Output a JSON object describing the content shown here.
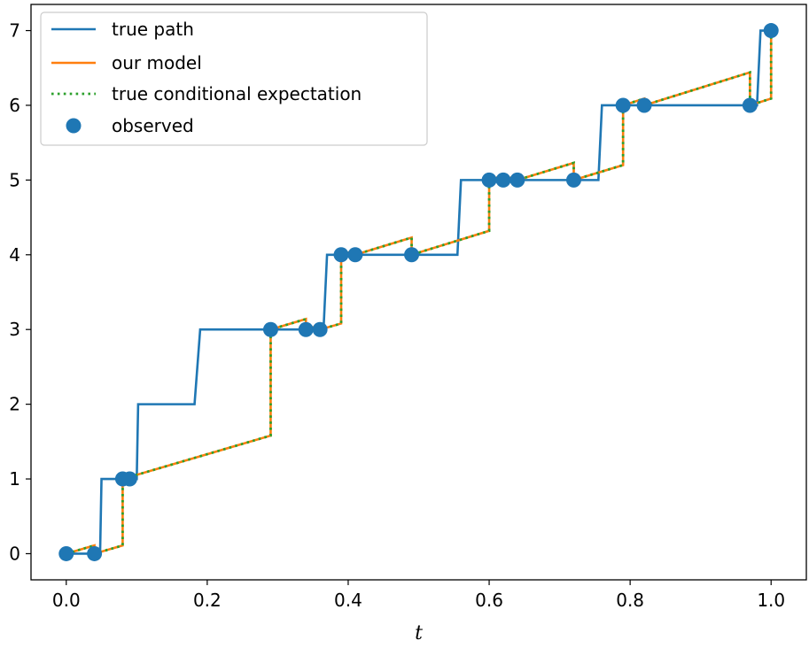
{
  "chart_data": {
    "type": "line",
    "title": "",
    "xlabel": "t",
    "ylabel": "",
    "xlim": [
      -0.05,
      1.05
    ],
    "ylim": [
      -0.35,
      7.35
    ],
    "x_ticks": [
      0.0,
      0.2,
      0.4,
      0.6,
      0.8,
      1.0
    ],
    "x_tick_labels": [
      "0.0",
      "0.2",
      "0.4",
      "0.6",
      "0.8",
      "1.0"
    ],
    "y_ticks": [
      0,
      1,
      2,
      3,
      4,
      5,
      6,
      7
    ],
    "y_tick_labels": [
      "0",
      "1",
      "2",
      "3",
      "4",
      "5",
      "6",
      "7"
    ],
    "grid": false,
    "legend_position": "top-left",
    "series": [
      {
        "name": "true path",
        "color": "#1f77b4",
        "style": "solid",
        "x": [
          0.0,
          0.048,
          0.05,
          0.1,
          0.102,
          0.182,
          0.19,
          0.29,
          0.3,
          0.365,
          0.37,
          0.555,
          0.56,
          0.755,
          0.76,
          0.98,
          0.985,
          1.0
        ],
        "y": [
          0,
          0,
          1,
          1,
          2,
          2,
          3,
          3,
          3,
          3,
          4,
          4,
          5,
          5,
          6,
          6,
          7,
          7
        ]
      },
      {
        "name": "our model",
        "color": "#ff7f0e",
        "style": "solid",
        "x": [
          0.0,
          0.04,
          0.04,
          0.08,
          0.08,
          0.29,
          0.29,
          0.34,
          0.34,
          0.36,
          0.36,
          0.39,
          0.39,
          0.41,
          0.41,
          0.49,
          0.49,
          0.6,
          0.6,
          0.62,
          0.62,
          0.64,
          0.64,
          0.72,
          0.72,
          0.79,
          0.79,
          0.82,
          0.82,
          0.97,
          0.97,
          1.0,
          1.0
        ],
        "y": [
          0.0,
          0.11,
          0.0,
          0.11,
          1.0,
          1.58,
          3.0,
          3.14,
          3.0,
          3.06,
          3.0,
          3.08,
          4.0,
          4.06,
          4.0,
          4.23,
          4.0,
          4.32,
          5.0,
          5.06,
          5.0,
          5.06,
          5.0,
          5.23,
          5.0,
          5.2,
          6.0,
          6.09,
          6.0,
          6.44,
          6.0,
          6.09,
          7.0
        ]
      },
      {
        "name": "true conditional expectation",
        "color": "#2ca02c",
        "style": "dotted",
        "x": [
          0.0,
          0.04,
          0.04,
          0.08,
          0.08,
          0.29,
          0.29,
          0.34,
          0.34,
          0.36,
          0.36,
          0.39,
          0.39,
          0.41,
          0.41,
          0.49,
          0.49,
          0.6,
          0.6,
          0.62,
          0.62,
          0.64,
          0.64,
          0.72,
          0.72,
          0.79,
          0.79,
          0.82,
          0.82,
          0.97,
          0.97,
          1.0,
          1.0
        ],
        "y": [
          0.0,
          0.11,
          0.0,
          0.11,
          1.0,
          1.58,
          3.0,
          3.14,
          3.0,
          3.06,
          3.0,
          3.08,
          4.0,
          4.06,
          4.0,
          4.23,
          4.0,
          4.32,
          5.0,
          5.06,
          5.0,
          5.06,
          5.0,
          5.23,
          5.0,
          5.2,
          6.0,
          6.09,
          6.0,
          6.44,
          6.0,
          6.09,
          7.0
        ]
      }
    ],
    "scatter": {
      "name": "observed",
      "color": "#1f77b4",
      "x": [
        0.0,
        0.04,
        0.08,
        0.09,
        0.29,
        0.34,
        0.36,
        0.39,
        0.41,
        0.49,
        0.6,
        0.62,
        0.64,
        0.72,
        0.79,
        0.82,
        0.97,
        1.0
      ],
      "y": [
        0,
        0,
        1,
        1,
        3,
        3,
        3,
        4,
        4,
        4,
        5,
        5,
        5,
        5,
        6,
        6,
        6,
        7
      ]
    },
    "legend": [
      "true path",
      "our model",
      "true conditional expectation",
      "observed"
    ]
  }
}
